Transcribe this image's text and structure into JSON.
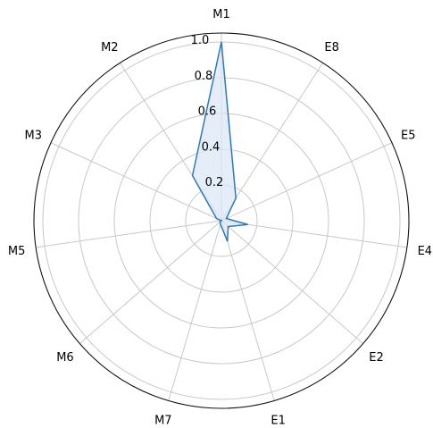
{
  "chart_data": {
    "type": "radar",
    "categories": [
      "M1",
      "E8",
      "E5",
      "E4",
      "E2",
      "E1",
      "M7",
      "M6",
      "M5",
      "M3",
      "M2"
    ],
    "series": [
      {
        "values": [
          1.0,
          0.15,
          0.03,
          0.15,
          0.05,
          0.12,
          0.02,
          0.01,
          0.0,
          0.03,
          0.3
        ]
      }
    ],
    "rlim": [
      0,
      1.05
    ],
    "r_ticks": [
      0.2,
      0.4,
      0.6,
      0.8,
      1.0
    ],
    "r_tick_labels": [
      "0.2",
      "0.4",
      "0.6",
      "0.8",
      "1.0"
    ],
    "grid": true,
    "colors": {
      "line": "#2f7ab5",
      "fill": "#dce8f5",
      "grid": "#c8c8c8",
      "frame": "#111111"
    }
  }
}
